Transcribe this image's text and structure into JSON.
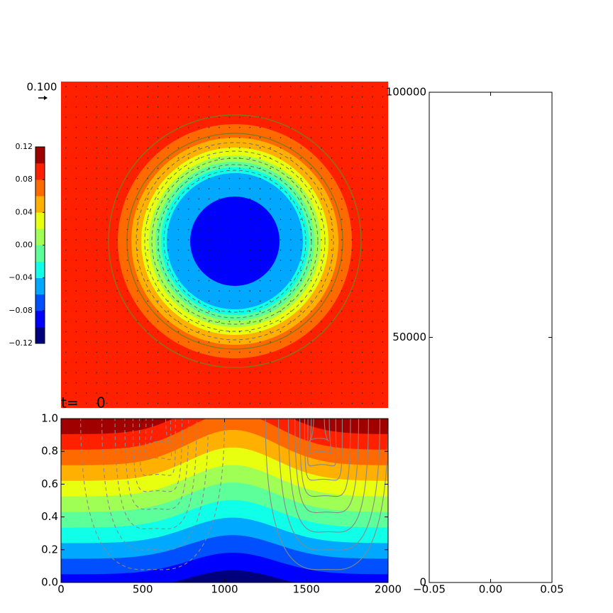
{
  "chart_data": [
    {
      "type": "contour-map",
      "quiver_key": "0.100",
      "colorbar": {
        "lim": [
          -0.12,
          0.12
        ],
        "ticks": [
          0.12,
          0.08,
          0.04,
          {
            "value": 0,
            "label": "0.00"
          },
          {
            "value": -0.04,
            "label": "−0.04"
          },
          {
            "value": -0.08,
            "label": "−0.08"
          },
          {
            "value": -0.12,
            "label": "−0.12"
          }
        ],
        "colors": [
          "#00007f",
          "#0000ff",
          "#0050ff",
          "#00a8ff",
          "#10ffe8",
          "#5cff9a",
          "#a0ff55",
          "#e8ff10",
          "#ffb000",
          "#ff6a00",
          "#ff2000",
          "#a00000"
        ]
      }
    },
    {
      "type": "contour-section",
      "title": "t=    0",
      "xlim": [
        0,
        2000
      ],
      "ylim": [
        0,
        1
      ],
      "xticks": [
        0,
        500,
        1000,
        1500,
        2000
      ],
      "yticks": [
        {
          "value": 0,
          "label": "0.0"
        },
        0.2,
        0.4,
        0.6,
        0.8,
        {
          "value": 1,
          "label": "1.0"
        }
      ]
    },
    {
      "type": "empty",
      "xlim": [
        -0.05,
        0.05
      ],
      "ylim": [
        0,
        100000
      ],
      "xticks": [
        {
          "value": -0.05,
          "label": "−0.05"
        },
        {
          "value": 0,
          "label": "0.00"
        },
        0.05
      ],
      "yticks": [
        0,
        50000,
        100000
      ]
    }
  ]
}
